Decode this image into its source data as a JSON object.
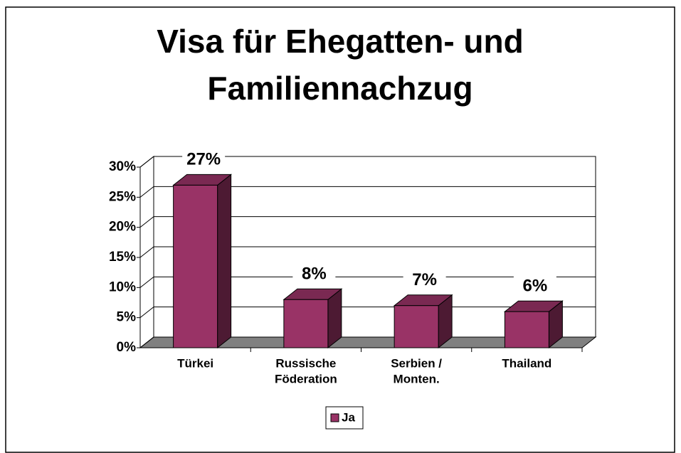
{
  "chart_data": {
    "type": "bar",
    "title": [
      "Visa für Ehegatten- und",
      "Familiennachzug"
    ],
    "categories": [
      [
        "Türkei"
      ],
      [
        "Russische",
        "Föderation"
      ],
      [
        "Serbien /",
        "Monten."
      ],
      [
        "Thailand"
      ]
    ],
    "series": [
      {
        "name": "Ja",
        "color": "#993366",
        "values": [
          27,
          8,
          7,
          6
        ],
        "value_labels": [
          "27%",
          "8%",
          "7%",
          "6%"
        ]
      }
    ],
    "ylim": [
      0,
      30
    ],
    "yticks": [
      {
        "value": 0,
        "label": "0%"
      },
      {
        "value": 5,
        "label": "5%"
      },
      {
        "value": 10,
        "label": "10%"
      },
      {
        "value": 15,
        "label": "15%"
      },
      {
        "value": 20,
        "label": "20%"
      },
      {
        "value": 25,
        "label": "25%"
      },
      {
        "value": 30,
        "label": "30%"
      }
    ],
    "grid": true,
    "legend": "bottom"
  }
}
